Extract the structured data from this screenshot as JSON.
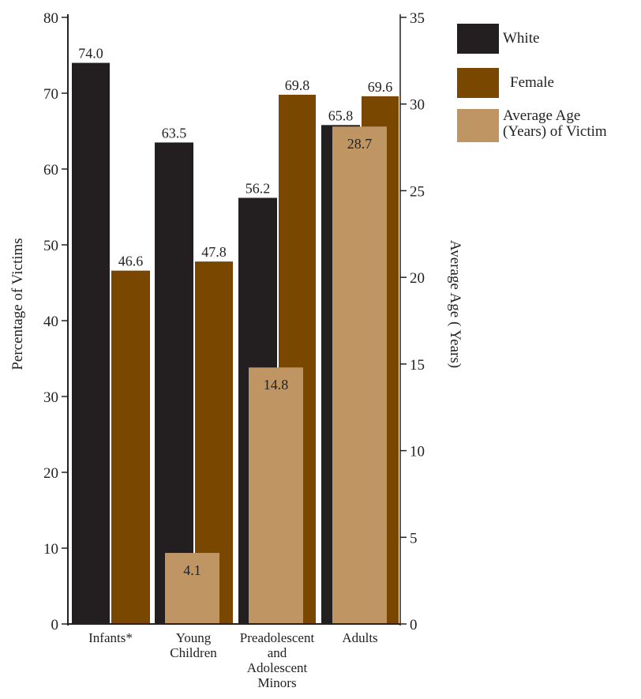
{
  "chart_data": {
    "type": "bar",
    "categories": [
      "Infants*",
      "Young Children",
      "Preadolescent and Adolescent Minors",
      "Adults"
    ],
    "category_lines": [
      [
        "Infants*"
      ],
      [
        "Young",
        "Children"
      ],
      [
        "Preadolescent",
        "and",
        "Adolescent",
        "Minors"
      ],
      [
        "Adults"
      ]
    ],
    "series": [
      {
        "name": "White",
        "axis": "left",
        "values": [
          74.0,
          63.5,
          56.2,
          65.8
        ],
        "color": "#231f20"
      },
      {
        "name": "Female",
        "axis": "left",
        "values": [
          46.6,
          47.8,
          69.8,
          69.6
        ],
        "color": "#7a4700"
      },
      {
        "name": "Average Age (Years) of Victim",
        "name_lines": [
          "Average Age",
          "(Years) of Victim"
        ],
        "axis": "right",
        "values": [
          null,
          4.1,
          14.8,
          28.7
        ],
        "color": "#bf9564"
      }
    ],
    "value_labels": [
      [
        "74.0",
        "63.5",
        "56.2",
        "65.8"
      ],
      [
        "46.6",
        "47.8",
        "69.8",
        "69.6"
      ],
      [
        "",
        "4.1",
        "14.8",
        "28.7"
      ]
    ],
    "ylabel": "Percentage of Victims",
    "y2label": "Average Age ( Years)",
    "ylim": [
      0,
      80
    ],
    "yticks": [
      0,
      10,
      20,
      30,
      40,
      50,
      60,
      70,
      80
    ],
    "y2lim": [
      0,
      35
    ],
    "y2ticks": [
      0,
      5,
      10,
      15,
      20,
      25,
      30,
      35
    ],
    "legend_position": "top-right",
    "grid": false
  }
}
